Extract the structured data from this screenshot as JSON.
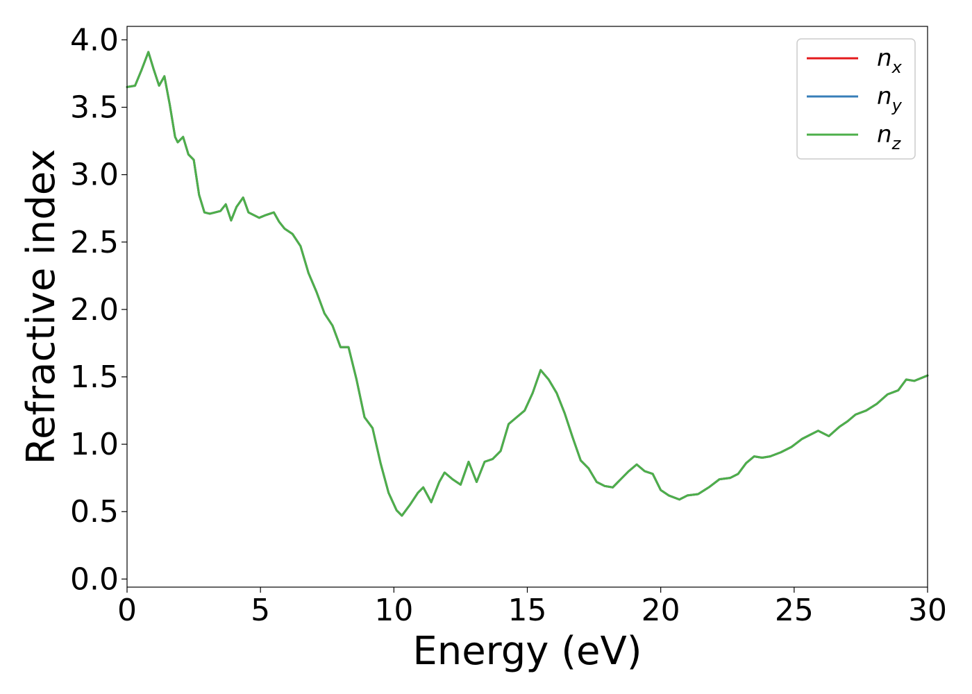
{
  "chart_data": {
    "type": "line",
    "title": "",
    "xlabel": "Energy (eV)",
    "ylabel": "Refractive index",
    "xlim": [
      0,
      30
    ],
    "ylim": [
      -0.06,
      4.1
    ],
    "xticks": [
      0,
      5,
      10,
      15,
      20,
      25,
      30
    ],
    "yticks": [
      "0.0",
      "0.5",
      "1.0",
      "1.5",
      "2.0",
      "2.5",
      "3.0",
      "3.5",
      "4.0"
    ],
    "grid": false,
    "legend_position": "top-right",
    "series": [
      {
        "name": "n_x",
        "label_base": "n",
        "label_sub": "x",
        "color": "#e41a1c",
        "x": [
          0,
          0.3,
          0.55,
          0.8,
          1.0,
          1.2,
          1.4,
          1.6,
          1.8,
          1.9,
          2.1,
          2.3,
          2.5,
          2.7,
          2.9,
          3.1,
          3.3,
          3.5,
          3.7,
          3.9,
          4.1,
          4.35,
          4.55,
          4.75,
          4.95,
          5.2,
          5.5,
          5.7,
          5.9,
          6.2,
          6.5,
          6.8,
          7.1,
          7.4,
          7.7,
          8.0,
          8.3,
          8.6,
          8.9,
          9.2,
          9.5,
          9.8,
          10.1,
          10.3,
          10.6,
          10.9,
          11.1,
          11.4,
          11.7,
          11.9,
          12.2,
          12.5,
          12.8,
          13.1,
          13.4,
          13.7,
          14.0,
          14.3,
          14.6,
          14.9,
          15.2,
          15.5,
          15.8,
          16.1,
          16.4,
          16.7,
          17.0,
          17.3,
          17.6,
          17.9,
          18.2,
          18.5,
          18.8,
          19.1,
          19.4,
          19.7,
          20.0,
          20.3,
          20.7,
          21.0,
          21.4,
          21.8,
          22.2,
          22.6,
          22.9,
          23.2,
          23.5,
          23.8,
          24.1,
          24.5,
          24.9,
          25.3,
          25.6,
          25.9,
          26.3,
          26.7,
          27.0,
          27.3,
          27.7,
          28.1,
          28.5,
          28.9,
          29.2,
          29.5,
          30.0
        ],
        "y": [
          3.65,
          3.66,
          3.78,
          3.91,
          3.78,
          3.66,
          3.73,
          3.52,
          3.28,
          3.24,
          3.28,
          3.15,
          3.11,
          2.85,
          2.72,
          2.71,
          2.72,
          2.73,
          2.78,
          2.66,
          2.76,
          2.83,
          2.72,
          2.7,
          2.68,
          2.7,
          2.72,
          2.65,
          2.6,
          2.56,
          2.47,
          2.27,
          2.13,
          1.97,
          1.88,
          1.72,
          1.72,
          1.48,
          1.2,
          1.12,
          0.86,
          0.64,
          0.51,
          0.47,
          0.55,
          0.64,
          0.68,
          0.57,
          0.72,
          0.79,
          0.74,
          0.7,
          0.87,
          0.72,
          0.87,
          0.89,
          0.95,
          1.15,
          1.2,
          1.25,
          1.38,
          1.55,
          1.48,
          1.38,
          1.23,
          1.05,
          0.88,
          0.82,
          0.72,
          0.69,
          0.68,
          0.74,
          0.8,
          0.85,
          0.8,
          0.78,
          0.66,
          0.62,
          0.59,
          0.62,
          0.63,
          0.68,
          0.74,
          0.75,
          0.78,
          0.86,
          0.91,
          0.9,
          0.91,
          0.94,
          0.98,
          1.04,
          1.07,
          1.1,
          1.06,
          1.13,
          1.17,
          1.22,
          1.25,
          1.3,
          1.37,
          1.4,
          1.48,
          1.47,
          1.51
        ]
      },
      {
        "name": "n_y",
        "label_base": "n",
        "label_sub": "y",
        "color": "#377eb8",
        "x": [
          0,
          0.3,
          0.55,
          0.8,
          1.0,
          1.2,
          1.4,
          1.6,
          1.8,
          1.9,
          2.1,
          2.3,
          2.5,
          2.7,
          2.9,
          3.1,
          3.3,
          3.5,
          3.7,
          3.9,
          4.1,
          4.35,
          4.55,
          4.75,
          4.95,
          5.2,
          5.5,
          5.7,
          5.9,
          6.2,
          6.5,
          6.8,
          7.1,
          7.4,
          7.7,
          8.0,
          8.3,
          8.6,
          8.9,
          9.2,
          9.5,
          9.8,
          10.1,
          10.3,
          10.6,
          10.9,
          11.1,
          11.4,
          11.7,
          11.9,
          12.2,
          12.5,
          12.8,
          13.1,
          13.4,
          13.7,
          14.0,
          14.3,
          14.6,
          14.9,
          15.2,
          15.5,
          15.8,
          16.1,
          16.4,
          16.7,
          17.0,
          17.3,
          17.6,
          17.9,
          18.2,
          18.5,
          18.8,
          19.1,
          19.4,
          19.7,
          20.0,
          20.3,
          20.7,
          21.0,
          21.4,
          21.8,
          22.2,
          22.6,
          22.9,
          23.2,
          23.5,
          23.8,
          24.1,
          24.5,
          24.9,
          25.3,
          25.6,
          25.9,
          26.3,
          26.7,
          27.0,
          27.3,
          27.7,
          28.1,
          28.5,
          28.9,
          29.2,
          29.5,
          30.0
        ],
        "y": [
          3.65,
          3.66,
          3.78,
          3.91,
          3.78,
          3.66,
          3.73,
          3.52,
          3.28,
          3.24,
          3.28,
          3.15,
          3.11,
          2.85,
          2.72,
          2.71,
          2.72,
          2.73,
          2.78,
          2.66,
          2.76,
          2.83,
          2.72,
          2.7,
          2.68,
          2.7,
          2.72,
          2.65,
          2.6,
          2.56,
          2.47,
          2.27,
          2.13,
          1.97,
          1.88,
          1.72,
          1.72,
          1.48,
          1.2,
          1.12,
          0.86,
          0.64,
          0.51,
          0.47,
          0.55,
          0.64,
          0.68,
          0.57,
          0.72,
          0.79,
          0.74,
          0.7,
          0.87,
          0.72,
          0.87,
          0.89,
          0.95,
          1.15,
          1.2,
          1.25,
          1.38,
          1.55,
          1.48,
          1.38,
          1.23,
          1.05,
          0.88,
          0.82,
          0.72,
          0.69,
          0.68,
          0.74,
          0.8,
          0.85,
          0.8,
          0.78,
          0.66,
          0.62,
          0.59,
          0.62,
          0.63,
          0.68,
          0.74,
          0.75,
          0.78,
          0.86,
          0.91,
          0.9,
          0.91,
          0.94,
          0.98,
          1.04,
          1.07,
          1.1,
          1.06,
          1.13,
          1.17,
          1.22,
          1.25,
          1.3,
          1.37,
          1.4,
          1.48,
          1.47,
          1.51
        ]
      },
      {
        "name": "n_z",
        "label_base": "n",
        "label_sub": "z",
        "color": "#4daf4a",
        "x": [
          0,
          0.3,
          0.55,
          0.8,
          1.0,
          1.2,
          1.4,
          1.6,
          1.8,
          1.9,
          2.1,
          2.3,
          2.5,
          2.7,
          2.9,
          3.1,
          3.3,
          3.5,
          3.7,
          3.9,
          4.1,
          4.35,
          4.55,
          4.75,
          4.95,
          5.2,
          5.5,
          5.7,
          5.9,
          6.2,
          6.5,
          6.8,
          7.1,
          7.4,
          7.7,
          8.0,
          8.3,
          8.6,
          8.9,
          9.2,
          9.5,
          9.8,
          10.1,
          10.3,
          10.6,
          10.9,
          11.1,
          11.4,
          11.7,
          11.9,
          12.2,
          12.5,
          12.8,
          13.1,
          13.4,
          13.7,
          14.0,
          14.3,
          14.6,
          14.9,
          15.2,
          15.5,
          15.8,
          16.1,
          16.4,
          16.7,
          17.0,
          17.3,
          17.6,
          17.9,
          18.2,
          18.5,
          18.8,
          19.1,
          19.4,
          19.7,
          20.0,
          20.3,
          20.7,
          21.0,
          21.4,
          21.8,
          22.2,
          22.6,
          22.9,
          23.2,
          23.5,
          23.8,
          24.1,
          24.5,
          24.9,
          25.3,
          25.6,
          25.9,
          26.3,
          26.7,
          27.0,
          27.3,
          27.7,
          28.1,
          28.5,
          28.9,
          29.2,
          29.5,
          30.0
        ],
        "y": [
          3.65,
          3.66,
          3.78,
          3.91,
          3.78,
          3.66,
          3.73,
          3.52,
          3.28,
          3.24,
          3.28,
          3.15,
          3.11,
          2.85,
          2.72,
          2.71,
          2.72,
          2.73,
          2.78,
          2.66,
          2.76,
          2.83,
          2.72,
          2.7,
          2.68,
          2.7,
          2.72,
          2.65,
          2.6,
          2.56,
          2.47,
          2.27,
          2.13,
          1.97,
          1.88,
          1.72,
          1.72,
          1.48,
          1.2,
          1.12,
          0.86,
          0.64,
          0.51,
          0.47,
          0.55,
          0.64,
          0.68,
          0.57,
          0.72,
          0.79,
          0.74,
          0.7,
          0.87,
          0.72,
          0.87,
          0.89,
          0.95,
          1.15,
          1.2,
          1.25,
          1.38,
          1.55,
          1.48,
          1.38,
          1.23,
          1.05,
          0.88,
          0.82,
          0.72,
          0.69,
          0.68,
          0.74,
          0.8,
          0.85,
          0.8,
          0.78,
          0.66,
          0.62,
          0.59,
          0.62,
          0.63,
          0.68,
          0.74,
          0.75,
          0.78,
          0.86,
          0.91,
          0.9,
          0.91,
          0.94,
          0.98,
          1.04,
          1.07,
          1.1,
          1.06,
          1.13,
          1.17,
          1.22,
          1.25,
          1.3,
          1.37,
          1.4,
          1.48,
          1.47,
          1.51
        ]
      }
    ]
  }
}
